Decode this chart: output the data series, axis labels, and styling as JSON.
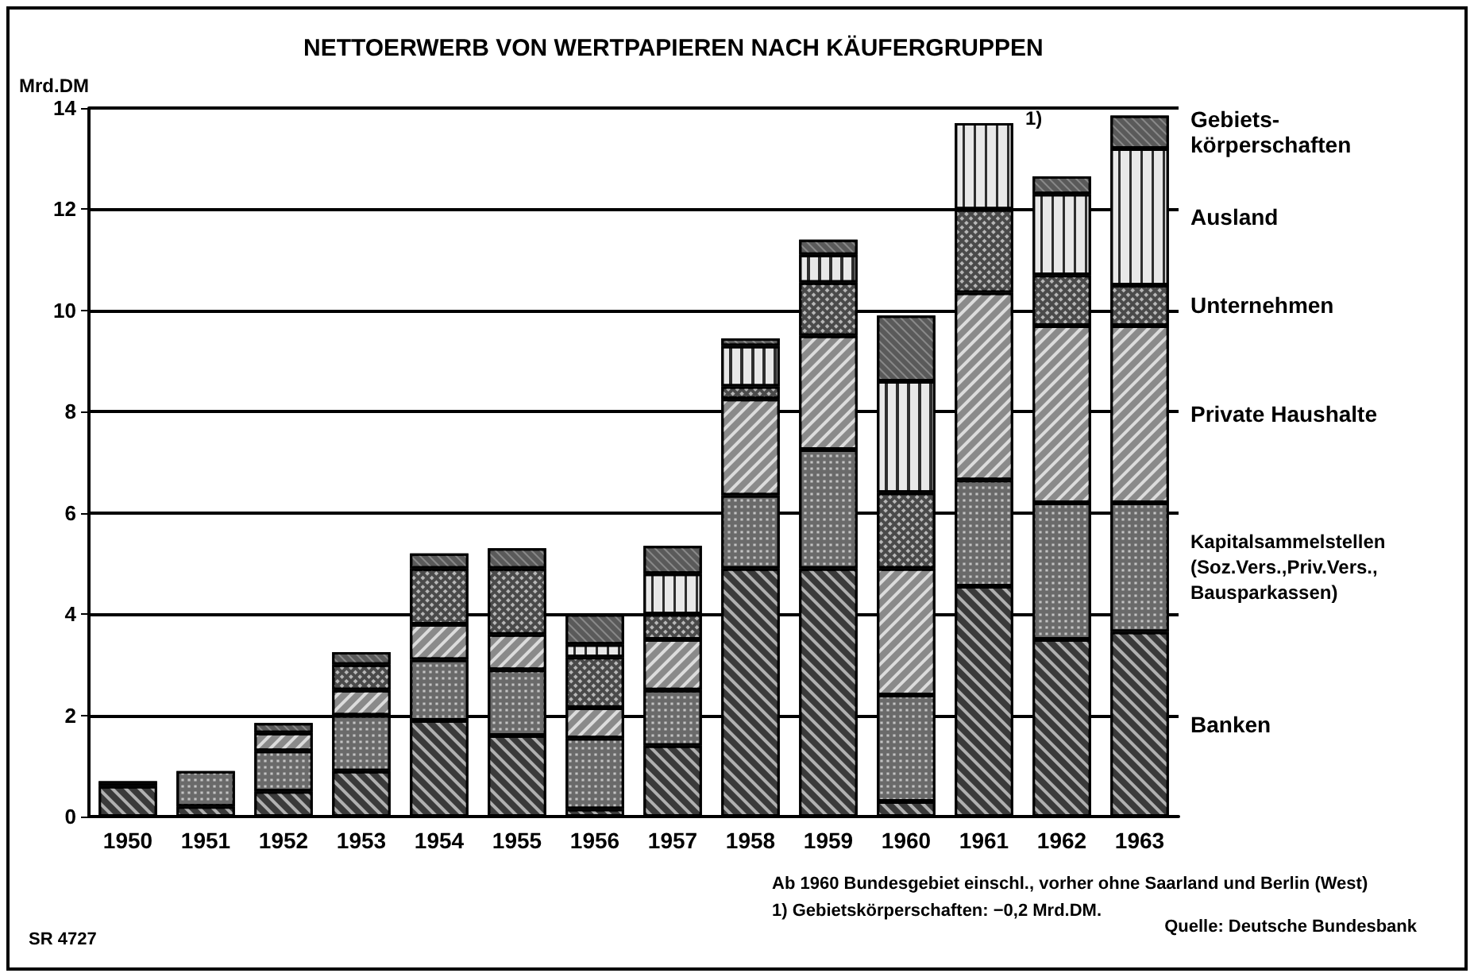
{
  "chart_data": {
    "type": "bar",
    "stacked": true,
    "title": "NETTOERWERB VON WERTPAPIEREN NACH KÄUFERGRUPPEN",
    "ylabel": "Mrd.DM",
    "categories": [
      "1950",
      "1951",
      "1952",
      "1953",
      "1954",
      "1955",
      "1956",
      "1957",
      "1958",
      "1959",
      "1960",
      "1961",
      "1962",
      "1963"
    ],
    "series": [
      {
        "name": "Banken",
        "color": "#3a3a3a",
        "values": [
          0.6,
          0.2,
          0.5,
          0.9,
          1.9,
          1.6,
          0.15,
          1.4,
          4.9,
          4.9,
          0.3,
          4.55,
          3.5,
          3.65
        ]
      },
      {
        "name": "Kapitalsammelstellen\n(Soz.Vers.,Priv.Vers.,\nBausparkassen)",
        "color": "#6a6a6a",
        "values": [
          0.1,
          0.7,
          0.8,
          1.1,
          1.2,
          1.3,
          1.4,
          1.1,
          1.45,
          2.35,
          2.1,
          2.1,
          2.7,
          2.55
        ]
      },
      {
        "name": "Private Haushalte",
        "color": "#8a8a8a",
        "values": [
          null,
          null,
          0.35,
          0.5,
          0.7,
          0.7,
          0.6,
          1.0,
          1.9,
          2.25,
          2.5,
          3.7,
          3.5,
          3.5
        ]
      },
      {
        "name": "Unternehmen",
        "color": "#4a4a4a",
        "values": [
          null,
          null,
          null,
          0.5,
          1.1,
          1.3,
          1.0,
          0.5,
          0.25,
          1.05,
          1.5,
          1.65,
          1.0,
          0.8
        ]
      },
      {
        "name": "Ausland",
        "color": "#e8e8e8",
        "values": [
          null,
          null,
          null,
          null,
          null,
          null,
          0.25,
          0.8,
          0.8,
          0.55,
          2.2,
          1.7,
          1.6,
          2.7
        ]
      },
      {
        "name": "Gebiets-\nkörperschaften",
        "color": "#5a5a5a",
        "values": [
          null,
          null,
          0.2,
          0.25,
          0.3,
          0.4,
          0.6,
          0.55,
          0.15,
          0.3,
          1.3,
          null,
          0.35,
          0.65
        ]
      }
    ],
    "ylim": [
      0,
      14
    ],
    "yticks": [
      0,
      2,
      4,
      6,
      8,
      10,
      12,
      14
    ],
    "grid": "y",
    "legend": "right",
    "annotations": [
      {
        "text": "1)",
        "x": "1961",
        "y": 13.7
      },
      "Ab 1960 Bundesgebiet einschl., vorher ohne Saarland und Berlin (West)",
      "1) Gebietskörperschaften: −0,2 Mrd.DM.",
      "Quelle: Deutsche Bundesbank",
      "SR 4727"
    ]
  }
}
